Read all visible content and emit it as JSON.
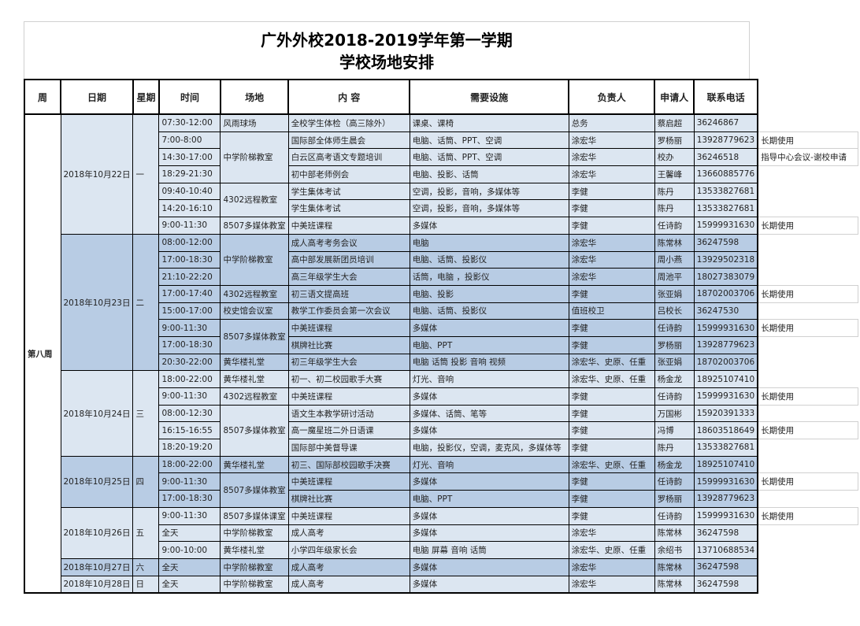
{
  "title": {
    "line1": "广外外校2018-2019学年第一学期",
    "line2": "学校场地安排"
  },
  "colors": {
    "light_row": "#dce6f1",
    "dark_row": "#b8cce4",
    "border": "#000000"
  },
  "headers": [
    "周",
    "日期",
    "星期",
    "时间",
    "场地",
    "内 容",
    "需要设施",
    "负责人",
    "申请人",
    "联系电话"
  ],
  "week": "第八周",
  "days": [
    {
      "date": "2018年10月22日",
      "weekday": "一",
      "shade": "light",
      "venues": [
        {
          "name": "风雨球场",
          "entries": [
            [
              "07:30-12:00",
              "全校学生体检（高三除外）",
              "课桌、课椅",
              "总务",
              "蔡启超",
              "36246867",
              ""
            ]
          ]
        },
        {
          "name": "中学阶梯教室",
          "entries": [
            [
              "7:00-8:00",
              "国际部全体师生晨会",
              "电脑、话筒、PPT、空调",
              "涂宏华",
              "罗杨丽",
              "13928779623",
              "长期使用"
            ],
            [
              "14:30-17:00",
              "白云区高考语文专题培训",
              "电脑、话筒、PPT、空调",
              "涂宏华",
              "校办",
              "36246518",
              "指导中心会议-谢校申请"
            ],
            [
              "18:29-21:30",
              "初中部老师例会",
              "电脑、投影、话筒",
              "涂宏华",
              "王馨峰",
              "13660885776",
              ""
            ]
          ]
        },
        {
          "name": "4302远程教室",
          "entries": [
            [
              "09:40-10:40",
              "学生集体考试",
              "空调，投影，音响，多媒体等",
              "李健",
              "陈丹",
              "13533827681",
              ""
            ],
            [
              "14:20-16:10",
              "学生集体考试",
              "空调，投影，音响，多媒体等",
              "李健",
              "陈丹",
              "13533827681",
              ""
            ]
          ]
        },
        {
          "name": "8507多媒体教室",
          "entries": [
            [
              "9:00-11:30",
              "中美班课程",
              "多媒体",
              "李健",
              "任诗韵",
              "15999931630",
              "长期使用"
            ]
          ]
        }
      ]
    },
    {
      "date": "2018年10月23日",
      "weekday": "二",
      "shade": "dark",
      "venues": [
        {
          "name": "中学阶梯教室",
          "entries": [
            [
              "08:00-12:00",
              "成人高考考务会议",
              "电脑",
              "涂宏华",
              "陈常林",
              "36247598",
              ""
            ],
            [
              "17:00-18:30",
              "高中部发展新团员培训",
              "电脑、话筒、投影仪",
              "涂宏华",
              "周小燕",
              "13929502318",
              ""
            ],
            [
              "21:10-22:20",
              "高三年级学生大会",
              "话筒，电脑 ，投影仪",
              "涂宏华",
              "周池平",
              "18027383079",
              ""
            ]
          ]
        },
        {
          "name": "4302远程教室",
          "entries": [
            [
              "17:00-17:40",
              "初三语文提高班",
              "电脑、投影",
              "李健",
              "张亚娟",
              "18702003706",
              "长期使用"
            ]
          ]
        },
        {
          "name": "校史馆会议室",
          "entries": [
            [
              "15:00-17:00",
              "教学工作委员会第一次会议",
              "电脑、话筒、投影仪",
              "值班校卫",
              "吕校长",
              "36247530",
              ""
            ]
          ]
        },
        {
          "name": "8507多媒体教室",
          "entries": [
            [
              "9:00-11:30",
              "中美班课程",
              "多媒体",
              "李健",
              "任诗韵",
              "15999931630",
              "长期使用"
            ],
            [
              "17:00-18:30",
              "棋牌社比赛",
              "电脑、PPT",
              "李健",
              "罗杨丽",
              "13928779623",
              ""
            ]
          ]
        },
        {
          "name": "黄华楼礼堂",
          "entries": [
            [
              "20:30-22:00",
              "初三年级学生大会",
              "电脑 话筒 投影 音响 视频",
              "涂宏华、史原、任重",
              "张亚娟",
              "18702003706",
              ""
            ]
          ]
        }
      ]
    },
    {
      "date": "2018年10月24日",
      "weekday": "三",
      "shade": "light",
      "venues": [
        {
          "name": "黄华楼礼堂",
          "entries": [
            [
              "18:00-22:00",
              "初一、初二校园歌手大赛",
              "灯光、音响",
              "涂宏华、史原、任重",
              "杨金龙",
              "18925107410",
              ""
            ]
          ]
        },
        {
          "name": "4302远程教室",
          "entries": [
            [
              "9:00-11:30",
              "中美班课程",
              "多媒体",
              "李健",
              "任诗韵",
              "15999931630",
              "长期使用"
            ]
          ]
        },
        {
          "name": "8507多媒体教室",
          "entries": [
            [
              "08:00-12:30",
              "语文生本教学研讨活动",
              "多媒体、话筒、笔等",
              "李健",
              "万国彬",
              "15920391333",
              ""
            ],
            [
              "16:15-16:55",
              "高一魔星班二外日语课",
              "多媒体",
              "李健",
              "冯博",
              "18603518649",
              "长期使用"
            ],
            [
              "18:20-19:20",
              "国际部中美督导课",
              "电脑，投影仪，空调，麦克风，多媒体等",
              "李健",
              "陈丹",
              "13533827681",
              ""
            ]
          ]
        }
      ]
    },
    {
      "date": "2018年10月25日",
      "weekday": "四",
      "shade": "dark",
      "venues": [
        {
          "name": "黄华楼礼堂",
          "entries": [
            [
              "18:00-22:00",
              "初三、国际部校园歌手决赛",
              "灯光、音响",
              "涂宏华、史原、任重",
              "杨金龙",
              "18925107410",
              ""
            ]
          ]
        },
        {
          "name": "8507多媒体教室",
          "entries": [
            [
              "9:00-11:30",
              "中美班课程",
              "多媒体",
              "李健",
              "任诗韵",
              "15999931630",
              "长期使用"
            ],
            [
              "17:00-18:30",
              "棋牌社比赛",
              "电脑、PPT",
              "李健",
              "罗杨丽",
              "13928779623",
              ""
            ]
          ]
        }
      ]
    },
    {
      "date": "2018年10月26日",
      "weekday": "五",
      "shade": "light",
      "venues": [
        {
          "name": "8507多媒体课室",
          "entries": [
            [
              "9:00-11:30",
              "中美班课程",
              "多媒体",
              "李健",
              "任诗韵",
              "15999931630",
              "长期使用"
            ]
          ]
        },
        {
          "name": "中学阶梯教室",
          "entries": [
            [
              "全天",
              "成人高考",
              "多媒体",
              "涂宏华",
              "陈常林",
              "36247598",
              ""
            ]
          ]
        },
        {
          "name": "黄华楼礼堂",
          "entries": [
            [
              "9:00-10:00",
              "小学四年级家长会",
              "电脑 屏幕 音响 话筒",
              "涂宏华、史原、任重",
              "余绍书",
              "13710688534",
              ""
            ]
          ]
        }
      ]
    },
    {
      "date": "2018年10月27日",
      "weekday": "六",
      "shade": "dark",
      "venues": [
        {
          "name": "中学阶梯教室",
          "entries": [
            [
              "全天",
              "成人高考",
              "多媒体",
              "涂宏华",
              "陈常林",
              "36247598",
              ""
            ]
          ]
        }
      ]
    },
    {
      "date": "2018年10月28日",
      "weekday": "日",
      "shade": "light",
      "venues": [
        {
          "name": "中学阶梯教室",
          "entries": [
            [
              "全天",
              "成人高考",
              "多媒体",
              "涂宏华",
              "陈常林",
              "36247598",
              ""
            ]
          ]
        }
      ]
    }
  ]
}
